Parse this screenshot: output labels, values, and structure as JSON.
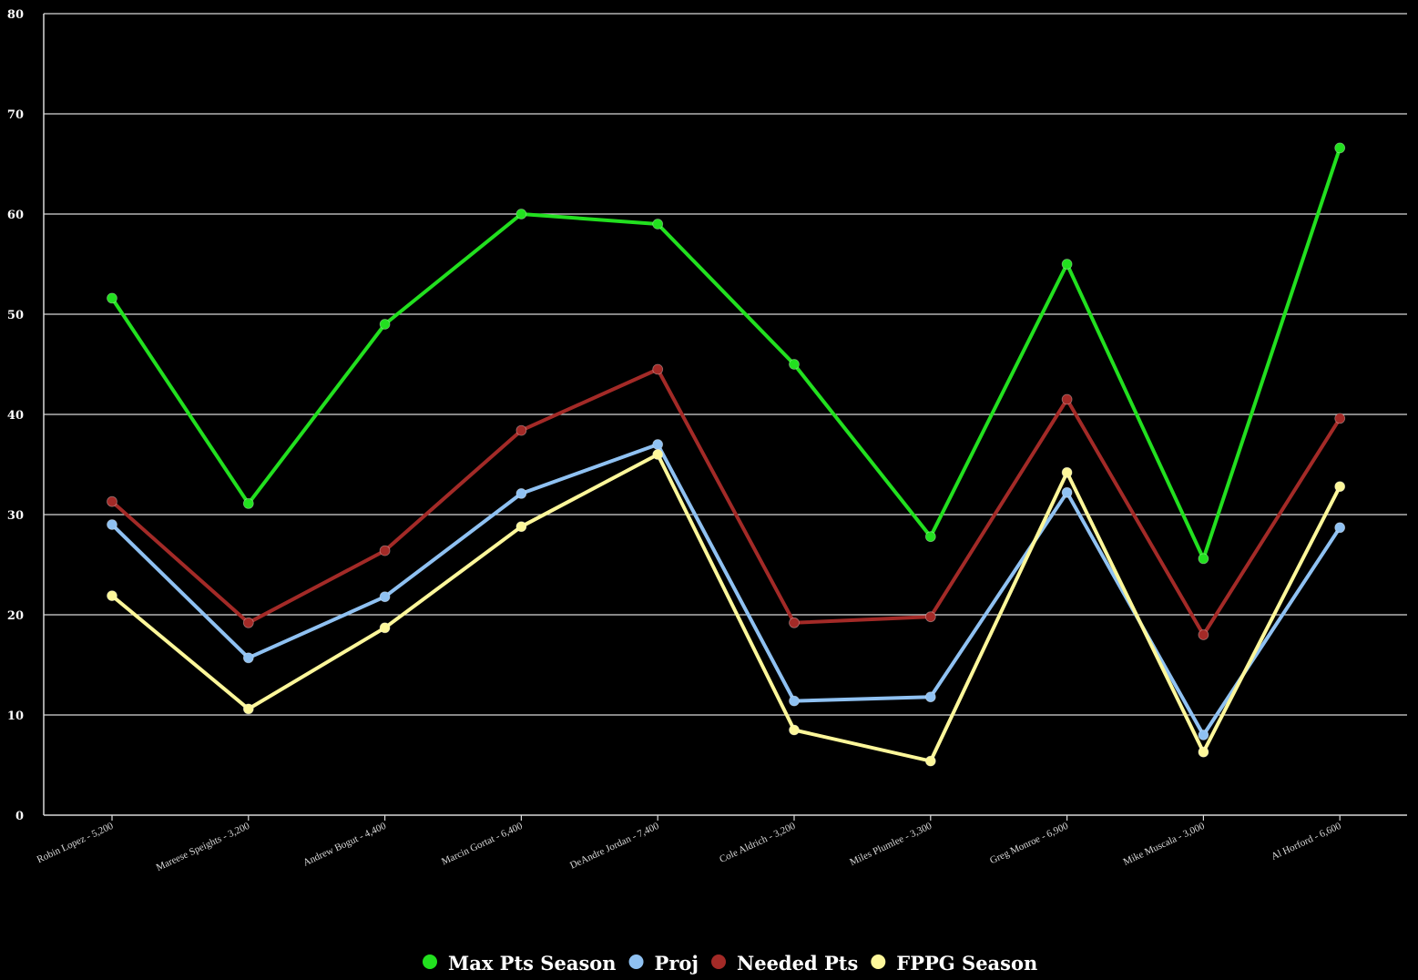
{
  "chart_data": {
    "type": "line",
    "title": "",
    "xlabel": "",
    "ylabel": "",
    "ylim": [
      0,
      80
    ],
    "yticks": [
      0,
      10,
      20,
      30,
      40,
      50,
      60,
      70,
      80
    ],
    "grid": true,
    "legend_position": "bottom-center",
    "categories": [
      "Robin Lopez - 5,200",
      "Mareese Speights - 3,200",
      "Andrew Bogut - 4,400",
      "Marcin Gortat - 6,400",
      "DeAndre Jordan - 7,400",
      "Cole Aldrich - 3,200",
      "Miles Plumlee - 3,300",
      "Greg Monroe - 6,900",
      "Mike Muscala - 3,000",
      "Al Horford - 6,600"
    ],
    "series": [
      {
        "name": "Max Pts Season",
        "color": "#22e01f",
        "values": [
          51.6,
          31.1,
          49.0,
          60.0,
          59.0,
          45.0,
          27.8,
          55.0,
          25.6,
          66.6
        ]
      },
      {
        "name": "Proj",
        "color": "#8fc1f2",
        "values": [
          29.0,
          15.7,
          21.8,
          32.1,
          37.0,
          11.4,
          11.8,
          32.2,
          8.0,
          28.7
        ]
      },
      {
        "name": "Needed Pts",
        "color": "#a32a27",
        "values": [
          31.3,
          19.2,
          26.4,
          38.4,
          44.5,
          19.2,
          19.8,
          41.5,
          18.0,
          39.6
        ]
      },
      {
        "name": "FPPG Season",
        "color": "#fdf79a",
        "values": [
          21.9,
          10.6,
          18.7,
          28.8,
          36.0,
          8.5,
          5.4,
          34.2,
          6.3,
          32.8
        ]
      }
    ]
  }
}
